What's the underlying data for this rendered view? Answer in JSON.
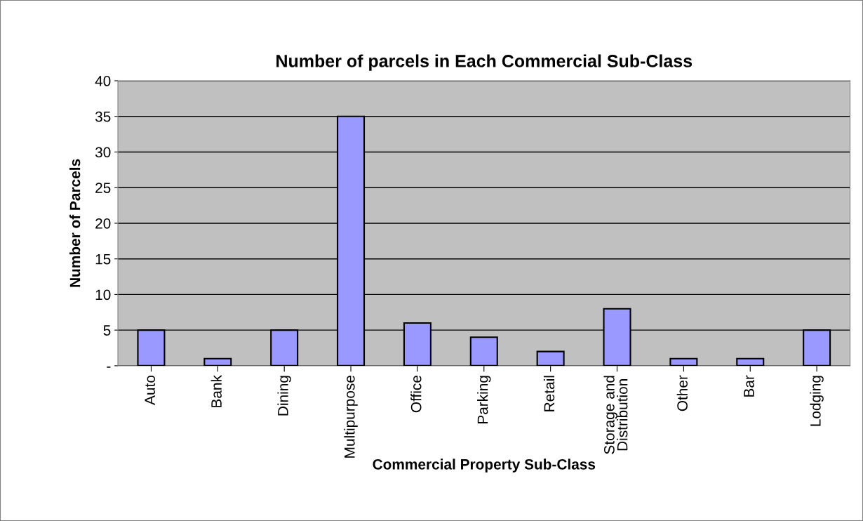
{
  "chart_data": {
    "type": "bar",
    "title": "Number of parcels in Each Commercial Sub-Class",
    "xlabel": "Commercial Property Sub-Class",
    "ylabel": "Number of Parcels",
    "categories": [
      "Auto",
      "Bank",
      "Dining",
      "Multipurpose",
      "Office",
      "Parking",
      "Retail",
      "Storage and\nDistribution",
      "Other",
      "Bar",
      "Lodging"
    ],
    "values": [
      5,
      1,
      5,
      35,
      6,
      4,
      2,
      8,
      1,
      1,
      5
    ],
    "color": "#9999ff",
    "ylim": [
      0,
      40
    ],
    "yticks": [
      {
        "value": 0,
        "label": "-"
      },
      5,
      10,
      15,
      20,
      25,
      30,
      35,
      40
    ],
    "grid": "y"
  }
}
